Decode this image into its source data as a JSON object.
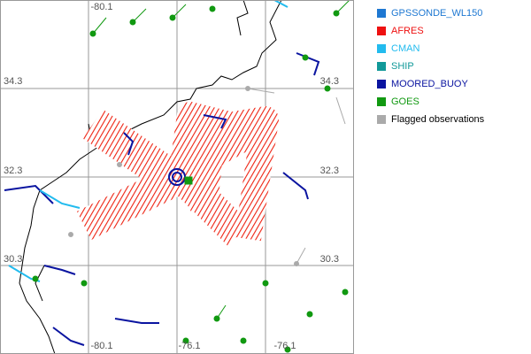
{
  "map": {
    "lon_labels_top": [
      "-80.1"
    ],
    "lon_labels_bottom": [
      "-80.1",
      "-76.1",
      "-76.1"
    ],
    "lat_labels_left": [
      "34.3",
      "32.3",
      "30.3"
    ],
    "lat_labels_right": [
      "34.3",
      "32.3",
      "30.3"
    ]
  },
  "legend": [
    {
      "label": "GPSSONDE_WL150",
      "color": "#1e78d2"
    },
    {
      "label": "AFRES",
      "color": "#ee1111"
    },
    {
      "label": "CMAN",
      "color": "#22bbee"
    },
    {
      "label": "SHIP",
      "color": "#119999"
    },
    {
      "label": "MOORED_BUOY",
      "color": "#0a14a0"
    },
    {
      "label": "GOES",
      "color": "#119911"
    },
    {
      "label": "Flagged observations",
      "color": "#aaaaaa"
    }
  ]
}
